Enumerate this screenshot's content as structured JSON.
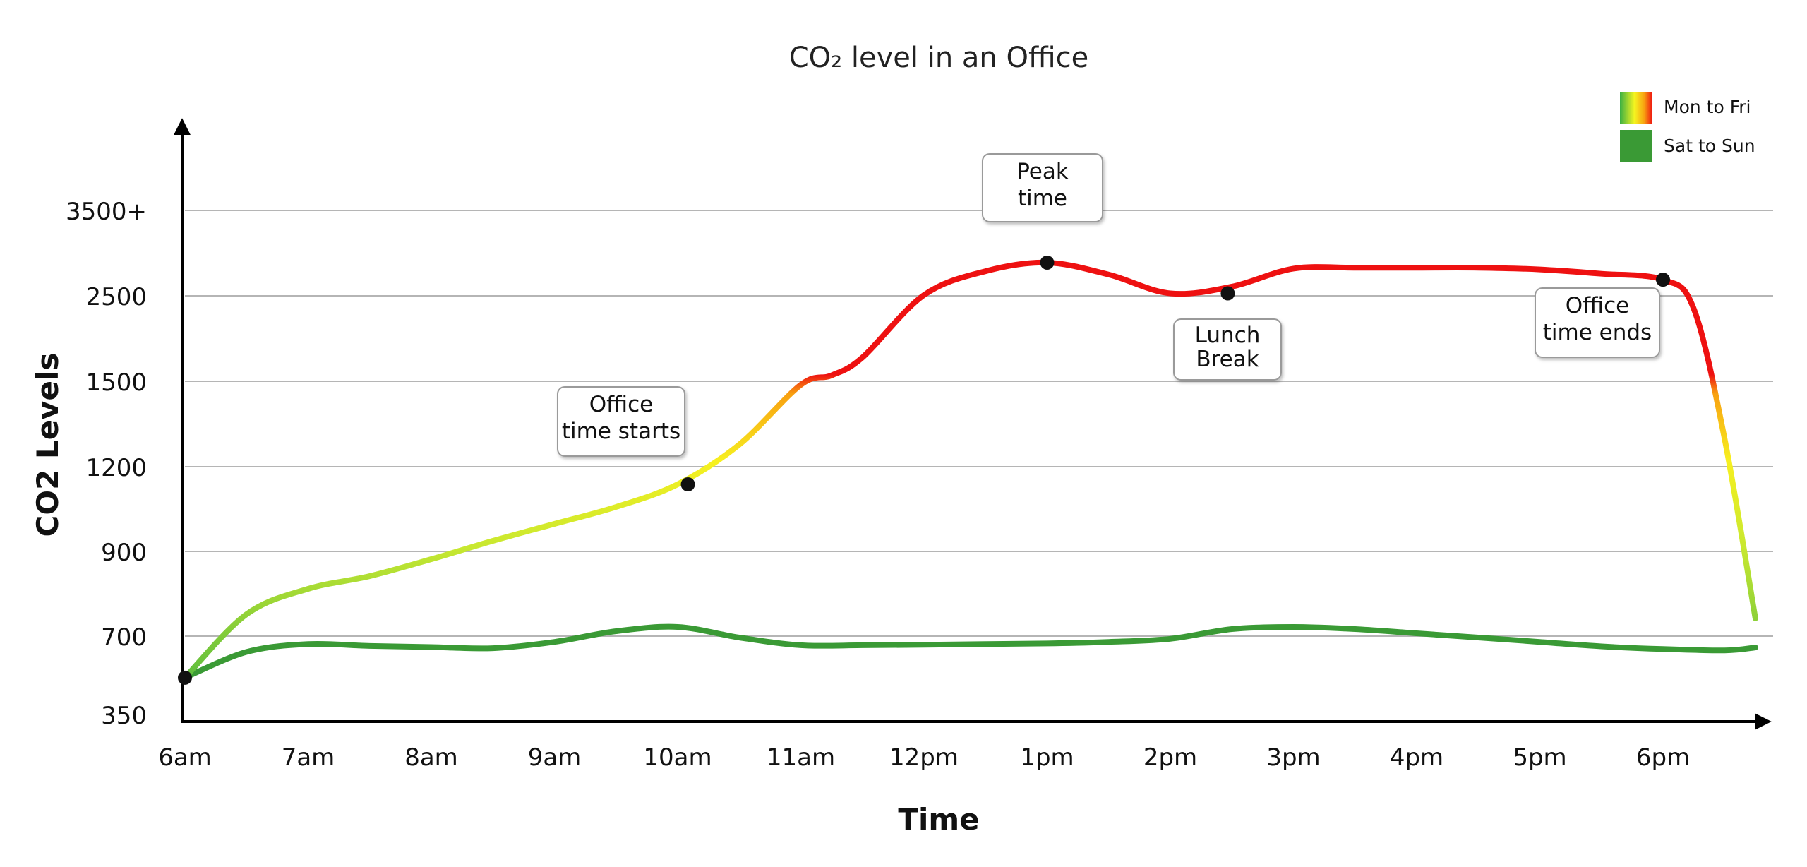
{
  "chart_data": {
    "type": "line",
    "title": "CO₂ level in an Office",
    "xlabel": "Time",
    "ylabel": "CO2 Levels",
    "x_ticks": [
      "6am",
      "7am",
      "8am",
      "9am",
      "10am",
      "11am",
      "12pm",
      "1pm",
      "2pm",
      "3pm",
      "4pm",
      "5pm",
      "6pm"
    ],
    "y_ticks": [
      "350",
      "700",
      "900",
      "1200",
      "1500",
      "2500",
      "3500+"
    ],
    "y_scale": "categorical-step (ticks evenly spaced)",
    "grid": "horizontal",
    "legend_position": "top-right",
    "colors": {
      "mon_fri_low": "#3cb043",
      "mon_fri_mid": "#f5f520",
      "mon_fri_high": "#ee1111",
      "sat_sun": "#3a9a35",
      "axis": "#000000",
      "grid": "#b5b5b5"
    },
    "series": [
      {
        "name": "Mon to Fri",
        "color_style": "gradient green-yellow-red by level",
        "x": [
          "6am",
          "6:30am",
          "7am",
          "7:30am",
          "8am",
          "8:30am",
          "9am",
          "9:30am",
          "10am",
          "10:30am",
          "11am",
          "11:15am",
          "11:30am",
          "12pm",
          "12:30pm",
          "1pm",
          "1:30pm",
          "2pm",
          "2:30pm",
          "3pm",
          "3:30pm",
          "4pm",
          "4:30pm",
          "5pm",
          "5:30pm",
          "6pm",
          "6:15pm",
          "6:30pm",
          "6:45pm"
        ],
        "values": [
          530,
          760,
          820,
          850,
          890,
          950,
          1010,
          1070,
          1150,
          1290,
          1500,
          1610,
          1820,
          2550,
          2830,
          2930,
          2790,
          2570,
          2650,
          2860,
          2870,
          2870,
          2870,
          2850,
          2800,
          2730,
          2390,
          1310,
          750
        ]
      },
      {
        "name": "Sat to Sun",
        "x": [
          "6am",
          "6:30am",
          "7am",
          "7:30am",
          "8am",
          "8:30am",
          "9am",
          "9:30am",
          "10am",
          "10:30am",
          "11am",
          "11:30am",
          "12pm",
          "12:30pm",
          "1pm",
          "1:30pm",
          "2pm",
          "2:30pm",
          "3pm",
          "3:30pm",
          "4pm",
          "4:30pm",
          "5pm",
          "5:30pm",
          "6pm",
          "6:30pm",
          "6:45pm"
        ],
        "values": [
          530,
          645,
          680,
          672,
          667,
          662,
          690,
          720,
          730,
          705,
          675,
          675,
          677,
          680,
          683,
          690,
          702,
          725,
          730,
          725,
          715,
          705,
          690,
          670,
          658,
          652,
          665
        ]
      }
    ],
    "markers": [
      {
        "x": "6am",
        "value": 530
      },
      {
        "x": "10:05am",
        "value": 1150
      },
      {
        "x": "1pm",
        "value": 2930
      },
      {
        "x": "2:28pm",
        "value": 2570
      },
      {
        "x": "6pm",
        "value": 2730
      }
    ],
    "annotations": [
      {
        "id": "office-start",
        "lines": [
          "Office",
          "time starts"
        ]
      },
      {
        "id": "peak",
        "lines": [
          "Peak",
          "time"
        ]
      },
      {
        "id": "lunch",
        "lines": [
          "Lunch",
          "Break"
        ]
      },
      {
        "id": "office-end",
        "lines": [
          "Office",
          "time ends"
        ]
      }
    ]
  }
}
